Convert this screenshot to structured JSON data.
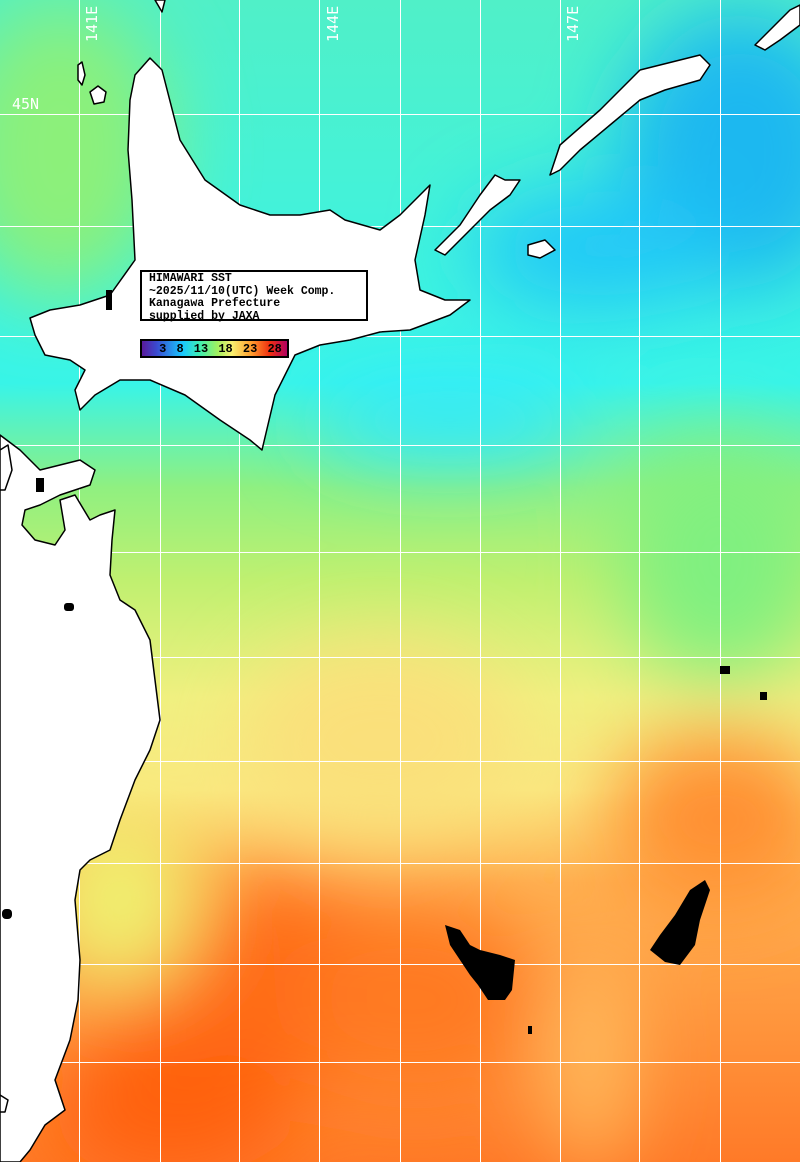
{
  "title_box": {
    "line1": "HIMAWARI SST",
    "line2": "~2025/11/10(UTC) Week Comp.",
    "line3": "Kanagawa Prefecture",
    "line4": "supplied by JAXA"
  },
  "legend": {
    "ticks": [
      "3",
      "8",
      "13",
      "18",
      "23",
      "28"
    ],
    "colors": [
      "#5a1a9a",
      "#18c8ff",
      "#40f0b0",
      "#a0f060",
      "#f8f070",
      "#ffa030",
      "#f03010",
      "#b00060"
    ]
  },
  "graticule": {
    "longitude_labels": [
      "141E",
      "144E",
      "147E"
    ],
    "latitude_labels": [
      "45N"
    ]
  },
  "colors": {
    "land": "#ffffff",
    "coastline": "#000000",
    "no_data": "#000000",
    "grid": "#ffffff"
  }
}
